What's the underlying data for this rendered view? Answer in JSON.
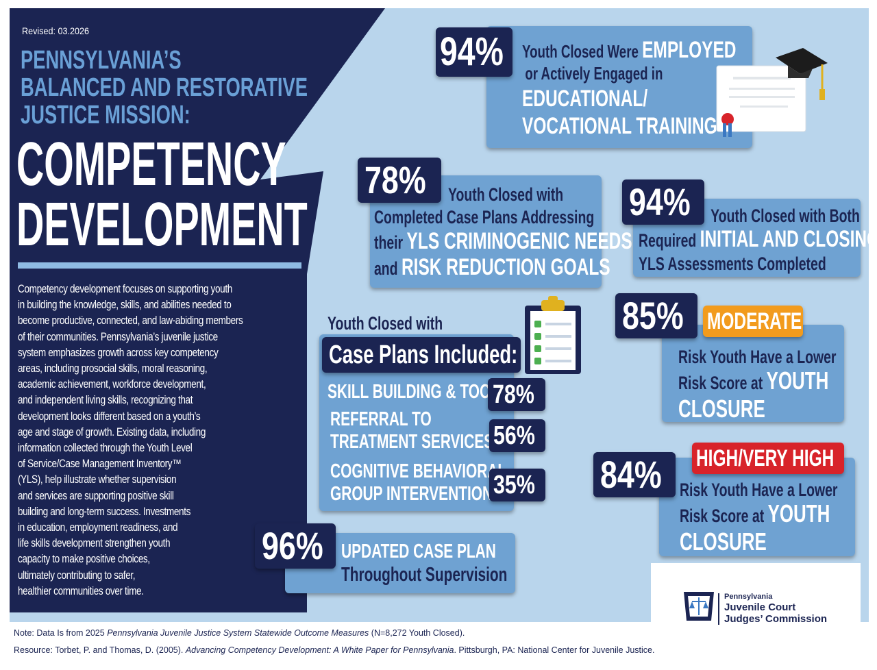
{
  "revised": "Revised: 03.2026",
  "title": {
    "line1": "PENNSYLVANIA’S",
    "line2": "BALANCED AND RESTORATIVE",
    "line3": "JUSTICE MISSION:",
    "main1": "COMPETENCY",
    "main2": "DEVELOPMENT"
  },
  "body_lines": [
    "Competency development focuses on supporting youth",
    "in building the knowledge, skills, and abilities needed to",
    "become productive, connected, and law-abiding members",
    "of their communities. Pennsylvania’s juvenile justice",
    "system emphasizes growth across key competency",
    "areas, including prosocial skills, moral reasoning,",
    "academic achievement, workforce development,",
    "and independent living skills, recognizing that",
    "development looks different based on a youth’s",
    "age and stage of growth. Existing data, including",
    "information collected through the Youth Level",
    "of Service/Case Management Inventory™",
    "(YLS), help illustrate whether supervision",
    "and services are supporting positive skill",
    "building and long-term success. Investments",
    "in education, employment readiness, and",
    "life skills development strengthen youth",
    "capacity to make positive choices,",
    "ultimately contributing to safer,",
    "healthier communities over time."
  ],
  "stats": {
    "employed": {
      "pct": "94%",
      "l1a": "Youth Closed Were ",
      "l1b": "EMPLOYED",
      "l2": "or Actively Engaged in",
      "l3": "EDUCATIONAL/",
      "l4": "VOCATIONAL TRAINING"
    },
    "case_plans": {
      "pct": "78%",
      "l1": "Youth Closed with",
      "l2": "Completed Case Plans Addressing",
      "l3a": "their ",
      "l3b": "YLS CRIMINOGENIC NEEDS",
      "l4a": "and ",
      "l4b": "RISK REDUCTION GOALS"
    },
    "assessments": {
      "pct": "94%",
      "l1": "Youth Closed with Both",
      "l2a": "Required ",
      "l2b": "INITIAL AND CLOSING",
      "l3": "YLS Assessments Completed"
    },
    "moderate": {
      "pct": "85%",
      "tag": "MODERATE",
      "l1": "Risk Youth Have a Lower",
      "l2a": "Risk Score at ",
      "l2b": "YOUTH",
      "l3": "CLOSURE"
    },
    "high": {
      "pct": "84%",
      "tag": "HIGH/VERY HIGH",
      "l1": "Risk Youth Have a Lower",
      "l2a": "Risk Score at ",
      "l2b": "YOUTH",
      "l3": "CLOSURE"
    },
    "updated": {
      "pct": "96%",
      "l1": "UPDATED CASE PLAN",
      "l2": "Throughout Supervision"
    }
  },
  "included": {
    "header1": "Youth Closed with",
    "header2": "Case Plans Included:",
    "items": [
      {
        "l1": "SKILL BUILDING & TOOLS",
        "l2": "",
        "pct": "78%"
      },
      {
        "l1": "REFERRAL TO",
        "l2": "TREATMENT SERVICES",
        "pct": "56%"
      },
      {
        "l1": "COGNITIVE BEHAVIORAL",
        "l2": "GROUP INTERVENTIONS",
        "pct": "35%"
      }
    ]
  },
  "logo": {
    "l1": "Pennsylvania",
    "l2": "Juvenile Court",
    "l3": "Judges’ Commission"
  },
  "footer": {
    "note_a": "Note: Data Is from 2025 ",
    "note_b": "Pennsylvania Juvenile Justice System Statewide Outcome Measures",
    "note_c": " (N=8,272 Youth Closed).",
    "res_a": "Resource: Torbet, P.  and Thomas, D. (2005). ",
    "res_b": "Advancing Competency Development: A White Paper for Pennsylvania",
    "res_c": ". Pittsburgh, PA: National Center for Juvenile Justice."
  },
  "colors": {
    "navy": "#1b2452",
    "light_blue_bg": "#b9d5ec",
    "card_blue": "#6fa2d2",
    "title_blue": "#6aa0d6",
    "orange": "#f29b1d",
    "red": "#d8232a"
  }
}
